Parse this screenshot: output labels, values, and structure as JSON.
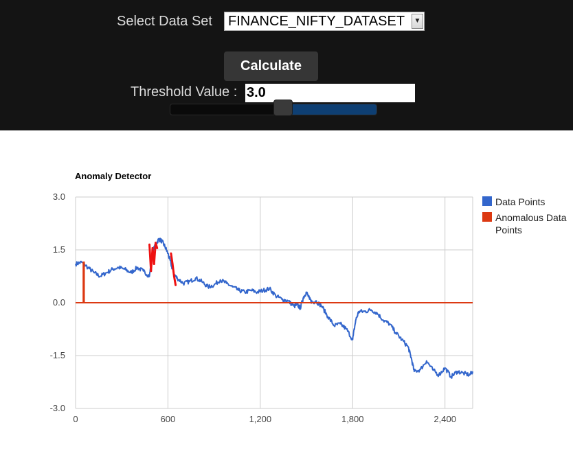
{
  "dataset": {
    "label": "Select Data Set",
    "selected": "FINANCE_NIFTY_DATASET"
  },
  "calculate_label": "Calculate",
  "threshold": {
    "label": "Threshold Value :",
    "value": "3.0",
    "slider_fraction": 0.55
  },
  "colors": {
    "data_points": "#3366cc",
    "anomalous": "#dc3912",
    "anomalous_marks": "#ee1111"
  },
  "chart_data": {
    "type": "line",
    "title": "Anomaly Detector",
    "xlim": [
      0,
      2580
    ],
    "ylim": [
      -3.0,
      3.0
    ],
    "x_ticks": [
      "0",
      "600",
      "1,200",
      "1,800",
      "2,400"
    ],
    "x_tick_values": [
      0,
      600,
      1200,
      1800,
      2400
    ],
    "y_ticks": [
      "3.0",
      "1.5",
      "0.0",
      "-1.5",
      "-3.0"
    ],
    "y_tick_values": [
      3.0,
      1.5,
      0.0,
      -1.5,
      -3.0
    ],
    "grid": true,
    "legend_position": "right",
    "series": [
      {
        "name": "Data Points",
        "color": "#3366cc",
        "x": [
          0,
          40,
          80,
          120,
          160,
          200,
          240,
          280,
          320,
          360,
          400,
          440,
          480,
          500,
          520,
          540,
          560,
          580,
          600,
          620,
          640,
          660,
          700,
          740,
          780,
          820,
          860,
          900,
          940,
          980,
          1020,
          1060,
          1100,
          1140,
          1180,
          1220,
          1260,
          1300,
          1340,
          1380,
          1420,
          1440,
          1460,
          1480,
          1500,
          1520,
          1540,
          1560,
          1600,
          1640,
          1680,
          1720,
          1760,
          1800,
          1820,
          1840,
          1880,
          1920,
          1960,
          2000,
          2040,
          2080,
          2120,
          2160,
          2180,
          2200,
          2240,
          2280,
          2320,
          2360,
          2400,
          2440,
          2480,
          2520,
          2560,
          2580
        ],
        "y": [
          1.1,
          1.15,
          1.0,
          0.85,
          0.75,
          0.85,
          0.95,
          1.0,
          0.95,
          0.85,
          1.0,
          0.9,
          0.75,
          1.45,
          1.65,
          1.8,
          1.75,
          1.6,
          1.4,
          1.1,
          0.8,
          0.7,
          0.55,
          0.6,
          0.7,
          0.6,
          0.45,
          0.5,
          0.65,
          0.55,
          0.45,
          0.35,
          0.3,
          0.35,
          0.3,
          0.35,
          0.4,
          0.2,
          0.1,
          0.05,
          -0.1,
          -0.05,
          -0.15,
          0.15,
          0.3,
          0.1,
          0.0,
          0.05,
          -0.1,
          -0.4,
          -0.65,
          -0.6,
          -0.75,
          -1.05,
          -0.5,
          -0.25,
          -0.25,
          -0.2,
          -0.3,
          -0.5,
          -0.6,
          -0.85,
          -1.05,
          -1.25,
          -1.55,
          -1.95,
          -1.9,
          -1.65,
          -1.9,
          -2.05,
          -1.85,
          -2.1,
          -1.95,
          -2.0,
          -2.05,
          -1.95
        ]
      },
      {
        "name": "Anomalous Data Points",
        "color": "#dc3912",
        "x": [
          0,
          50,
          50,
          56,
          56,
          2580
        ],
        "y": [
          0.0,
          0.0,
          1.15,
          1.15,
          0.0,
          0.0
        ]
      }
    ],
    "anomaly_marks": {
      "color": "#ee1111",
      "x": [
        480,
        490,
        500,
        510,
        520,
        530,
        620,
        630,
        640,
        650
      ],
      "y": [
        1.65,
        0.9,
        1.55,
        1.1,
        1.7,
        1.55,
        1.4,
        1.1,
        0.75,
        0.5
      ]
    }
  }
}
